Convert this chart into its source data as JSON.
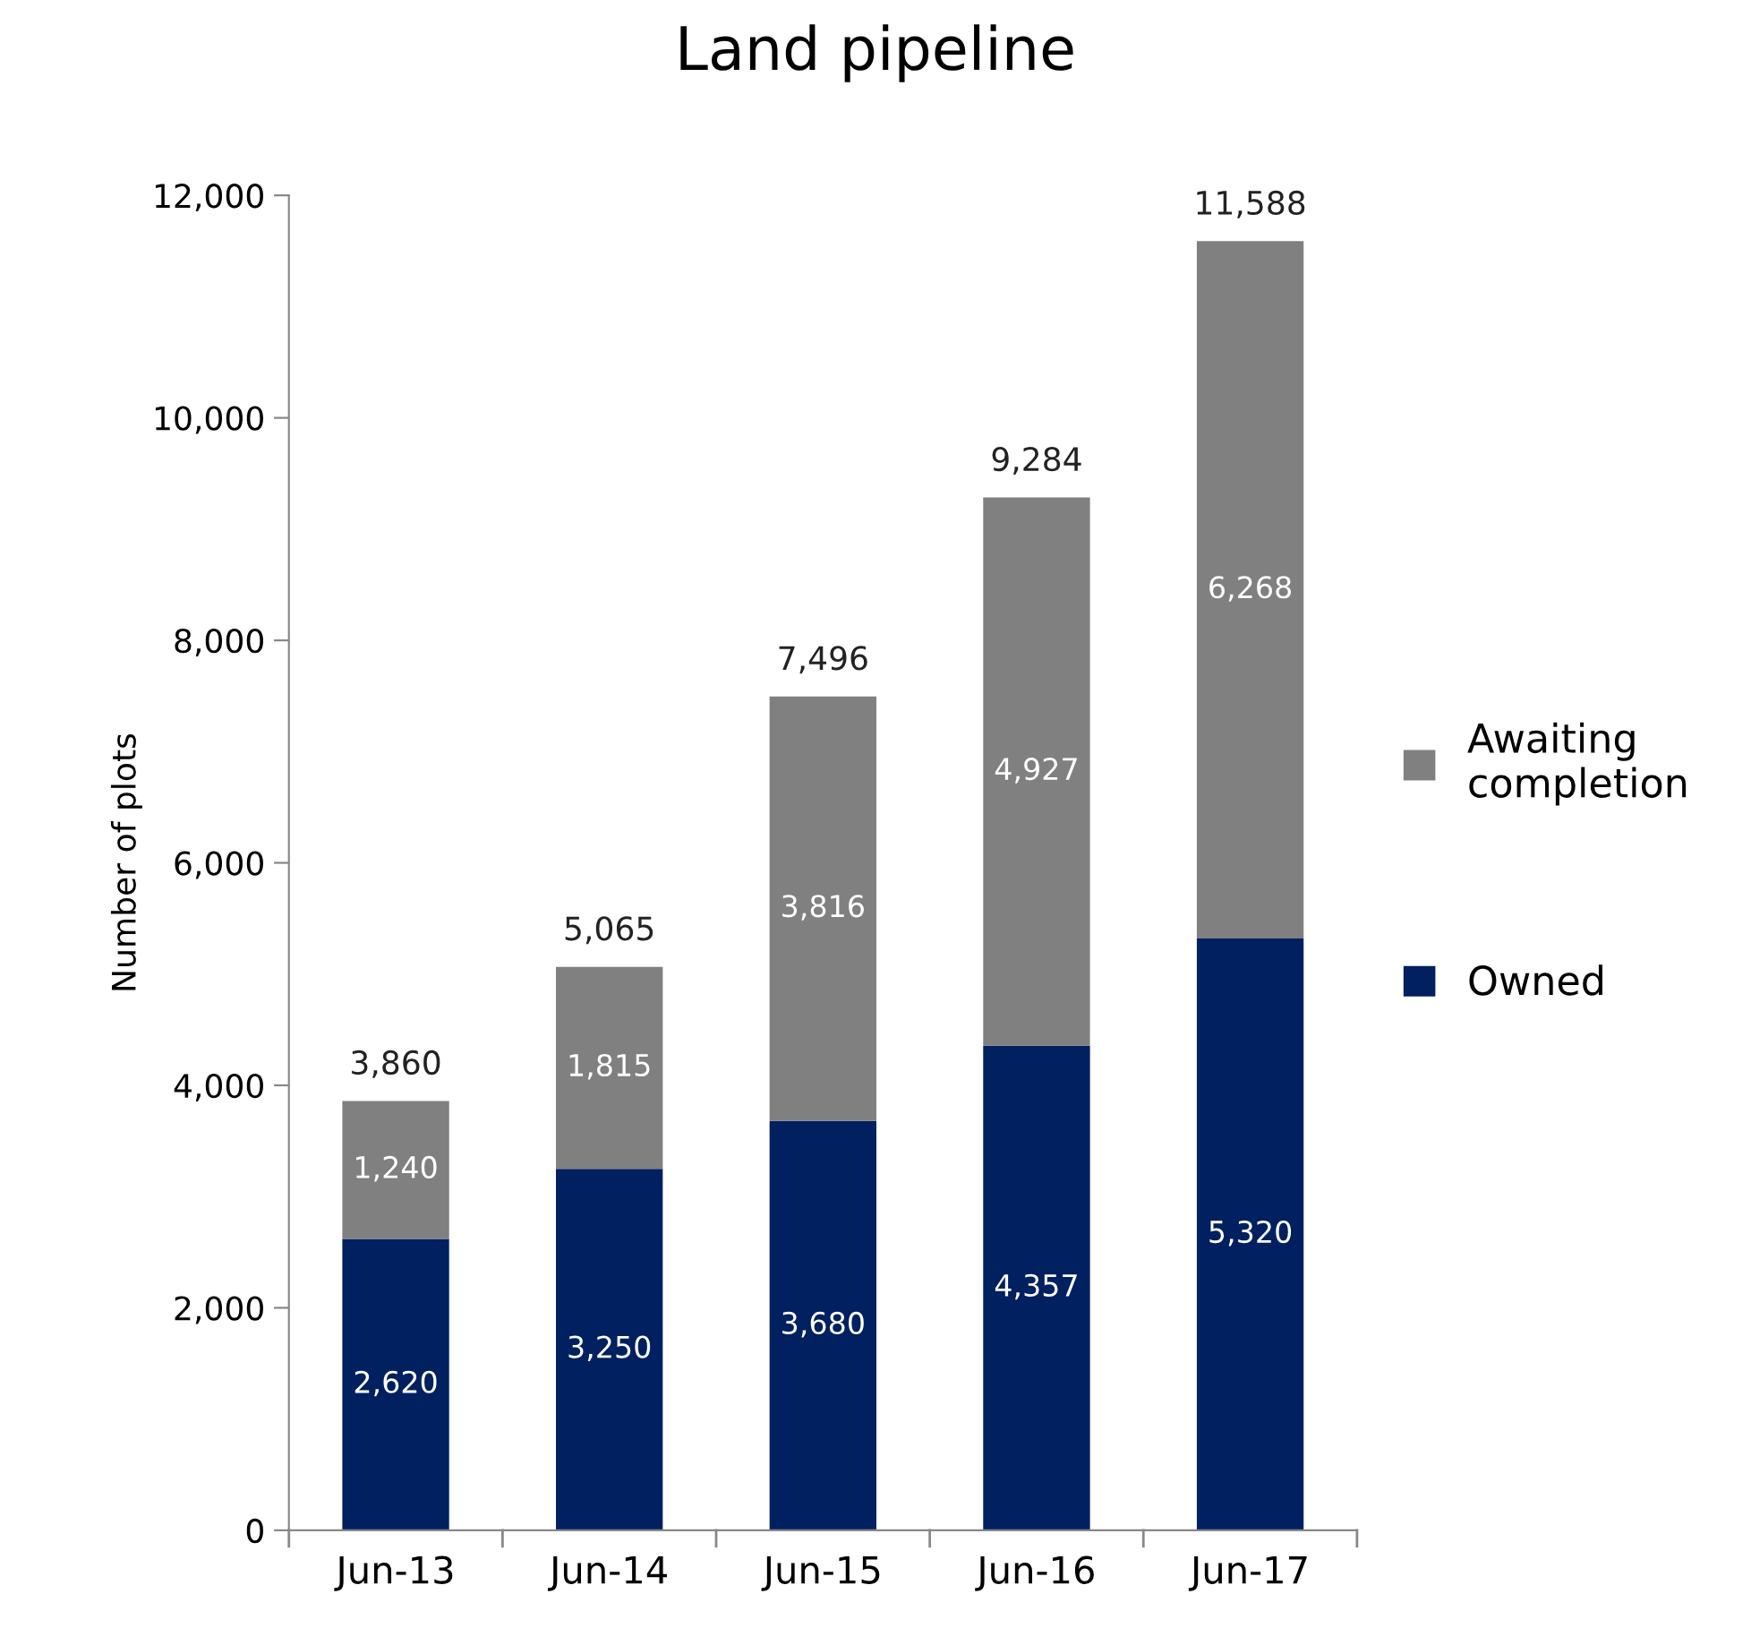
{
  "chart_data": {
    "type": "bar",
    "title": "Land pipeline",
    "ylabel": "Number of plots",
    "categories": [
      "Jun-13",
      "Jun-14",
      "Jun-15",
      "Jun-16",
      "Jun-17"
    ],
    "stacked": true,
    "series": [
      {
        "name": "Owned",
        "color": "#002060",
        "values": [
          2620,
          3250,
          3680,
          4357,
          5320
        ],
        "value_labels": [
          "2,620",
          "3,250",
          "3,680",
          "4,357",
          "5,320"
        ]
      },
      {
        "name": "Awaiting completion",
        "color": "#808080",
        "values": [
          1240,
          1815,
          3816,
          4927,
          6268
        ],
        "value_labels": [
          "1,240",
          "1,815",
          "3,816",
          "4,927",
          "6,268"
        ]
      }
    ],
    "totals": [
      "3,860",
      "5,065",
      "7,496",
      "9,284",
      "11,588"
    ],
    "ylim": [
      0,
      12000
    ],
    "yticks": [
      0,
      {
        "value": 2000,
        "label": "2,000"
      },
      {
        "value": 4000,
        "label": "4,000"
      },
      {
        "value": 6000,
        "label": "6,000"
      },
      {
        "value": 8000,
        "label": "8,000"
      },
      {
        "value": 10000,
        "label": "10,000"
      },
      {
        "value": 12000,
        "label": "12,000"
      }
    ],
    "grid": false,
    "legend": "right"
  }
}
